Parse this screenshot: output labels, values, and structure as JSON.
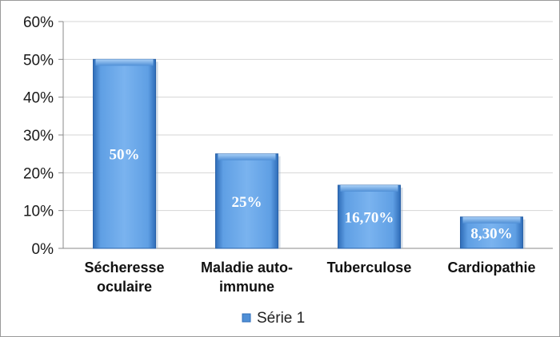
{
  "chart_data": {
    "type": "bar",
    "categories": [
      [
        "Sécheresse",
        "oculaire"
      ],
      [
        "Maladie auto-",
        "immune"
      ],
      [
        "Tuberculose"
      ],
      [
        "Cardiopathie"
      ]
    ],
    "series": [
      {
        "name": "Série 1",
        "values": [
          50,
          25,
          16.7,
          8.3
        ],
        "data_labels": [
          "50%",
          "25%",
          "16,70%",
          "8,30%"
        ],
        "color": "#4f8fd6"
      }
    ],
    "y_ticks": [
      "0%",
      "10%",
      "20%",
      "30%",
      "40%",
      "50%",
      "60%"
    ],
    "ylim": [
      0,
      60
    ],
    "grid": true,
    "legend_position": "bottom"
  }
}
